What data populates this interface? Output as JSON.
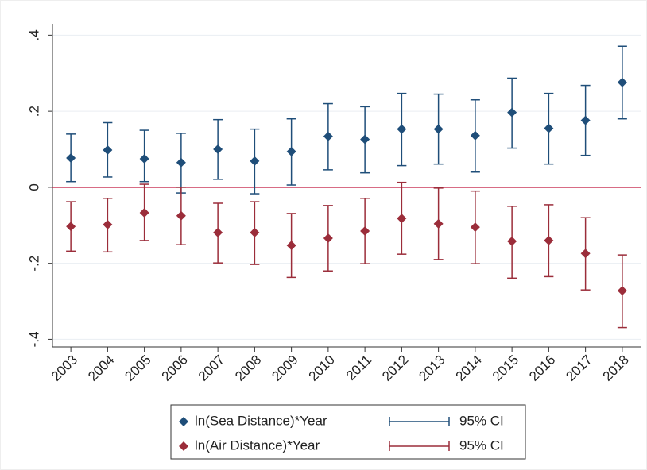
{
  "chart_data": {
    "type": "errorbar",
    "categories": [
      "2003",
      "2004",
      "2005",
      "2006",
      "2007",
      "2008",
      "2009",
      "2010",
      "2011",
      "2012",
      "2013",
      "2014",
      "2015",
      "2016",
      "2017",
      "2018"
    ],
    "series": [
      {
        "name": "ln(Sea Distance)*Year",
        "ci_name": "95% CI",
        "color": "#1f4e79",
        "values": [
          0.077,
          0.098,
          0.075,
          0.065,
          0.1,
          0.069,
          0.094,
          0.134,
          0.126,
          0.153,
          0.153,
          0.136,
          0.197,
          0.155,
          0.176,
          0.276
        ],
        "lower": [
          0.015,
          0.027,
          0.015,
          -0.015,
          0.021,
          -0.017,
          0.006,
          0.046,
          0.038,
          0.057,
          0.061,
          0.04,
          0.103,
          0.061,
          0.084,
          0.18
        ],
        "upper": [
          0.14,
          0.17,
          0.15,
          0.142,
          0.178,
          0.153,
          0.18,
          0.22,
          0.212,
          0.247,
          0.245,
          0.23,
          0.287,
          0.247,
          0.268,
          0.371
        ]
      },
      {
        "name": "ln(Air Distance)*Year",
        "ci_name": "95% CI",
        "color": "#9b2d3a",
        "values": [
          -0.103,
          -0.098,
          -0.067,
          -0.075,
          -0.119,
          -0.119,
          -0.153,
          -0.134,
          -0.115,
          -0.082,
          -0.096,
          -0.105,
          -0.142,
          -0.14,
          -0.174,
          -0.272
        ],
        "lower": [
          -0.168,
          -0.17,
          -0.14,
          -0.151,
          -0.199,
          -0.203,
          -0.237,
          -0.22,
          -0.201,
          -0.176,
          -0.19,
          -0.201,
          -0.239,
          -0.235,
          -0.27,
          -0.369
        ],
        "upper": [
          -0.038,
          -0.029,
          0.008,
          0,
          -0.042,
          -0.038,
          -0.069,
          -0.048,
          -0.029,
          0.013,
          -0.002,
          -0.01,
          -0.05,
          -0.046,
          -0.08,
          -0.178
        ]
      }
    ],
    "ylim": [
      -0.42,
      0.43
    ],
    "yticks": [
      {
        "value": -0.4,
        "label": "-.4"
      },
      {
        "value": -0.2,
        "label": "-.2"
      },
      0,
      {
        "value": 0.2,
        "label": ".2"
      },
      {
        "value": 0.4,
        "label": ".4"
      }
    ],
    "grid": true,
    "reference_line": {
      "value": 0,
      "color": "#c0143c"
    },
    "legend": "bottom"
  }
}
